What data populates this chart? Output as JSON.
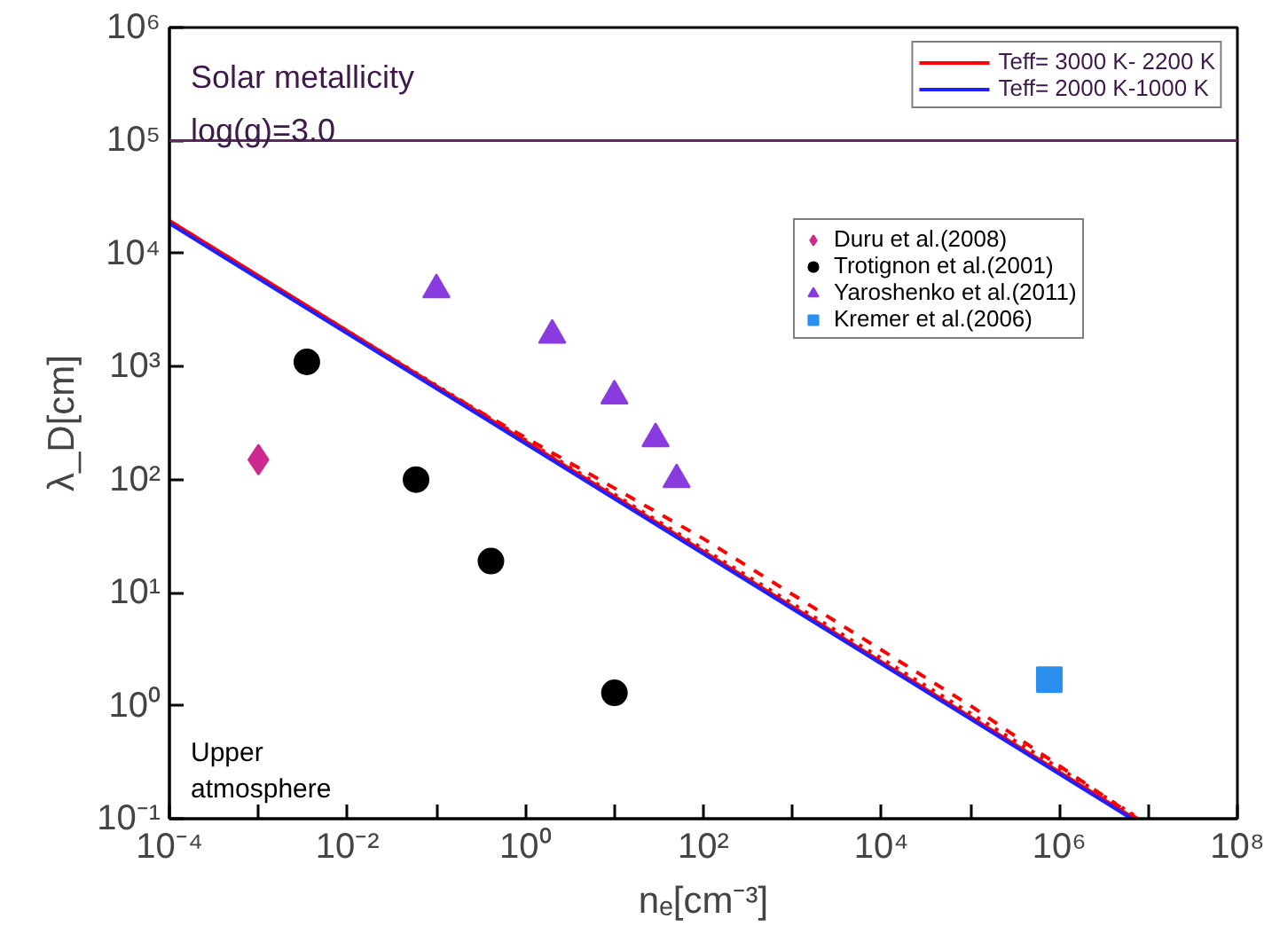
{
  "chart_data": {
    "type": "line",
    "xlabel": "nₑ[cm⁻³]",
    "ylabel": "λ_D[cm]",
    "log": "xy",
    "grid": false,
    "legend": "top right",
    "xlim": [
      0.0001,
      100000000
    ],
    "ylim": [
      0.1,
      1000000
    ],
    "xticks": [
      {
        "value": 0.0001,
        "label": "10⁻⁴"
      },
      {
        "value": 0.001,
        "label": null
      },
      {
        "value": 0.01,
        "label": "10⁻²"
      },
      {
        "value": 0.1,
        "label": null
      },
      {
        "value": 1,
        "label": "10⁰"
      },
      {
        "value": 10,
        "label": null
      },
      {
        "value": 100,
        "label": "10²"
      },
      {
        "value": 1000,
        "label": null
      },
      {
        "value": 10000,
        "label": "10⁴"
      },
      {
        "value": 100000,
        "label": null
      },
      {
        "value": 1000000,
        "label": "10⁶"
      },
      {
        "value": 10000000,
        "label": null
      },
      {
        "value": 100000000,
        "label": "10⁸"
      }
    ],
    "yticks": [
      {
        "value": 0.1,
        "label": "10⁻¹"
      },
      {
        "value": 1,
        "label": "10⁰"
      },
      {
        "value": 10,
        "label": "10¹"
      },
      {
        "value": 100,
        "label": "10²"
      },
      {
        "value": 1000,
        "label": "10³"
      },
      {
        "value": 10000,
        "label": "10⁴"
      },
      {
        "value": 100000,
        "label": "10⁵"
      },
      {
        "value": 1000000,
        "label": "10⁶"
      }
    ],
    "series": [
      {
        "name": "Teff= 3000 K- 2200 K",
        "color": "#ff0000",
        "line_style": "solid",
        "x": [
          0.0001,
          7000000
        ],
        "values": [
          19500,
          0.1
        ]
      },
      {
        "color": "#ff0000",
        "line_style": "dashed",
        "x": [
          0.0001,
          0.1,
          100,
          100000,
          7500000
        ],
        "values": [
          19500,
          660,
          30,
          1.0,
          0.1
        ]
      },
      {
        "color": "#ff0000",
        "line_style": "dotted",
        "x": [
          0.0001,
          1,
          1000,
          1000000,
          8000000
        ],
        "values": [
          19000,
          225,
          8,
          0.28,
          0.1
        ]
      },
      {
        "name": "Teff= 2000 K-1000 K",
        "color": "#2020ff",
        "line_style": "solid",
        "x": [
          0.0001,
          6500000
        ],
        "values": [
          18500,
          0.1
        ]
      },
      {
        "type": "scatter",
        "name": "Duru et al.(2008)",
        "color": "#cc2a8f",
        "marker": "diamond",
        "x": [
          0.001
        ],
        "values": [
          150
        ]
      },
      {
        "type": "scatter",
        "name": "Trotignon et al.(2001)",
        "color": "#000000",
        "marker": "circle",
        "x": [
          0.0035,
          0.059,
          0.41,
          10
        ],
        "values": [
          1100,
          100,
          19,
          1.3
        ]
      },
      {
        "type": "scatter",
        "name": "Yaroshenko et al.(2011)",
        "color": "#8a3be0",
        "marker": "triangle",
        "x": [
          0.1,
          2,
          10,
          29,
          50
        ],
        "values": [
          4800,
          1900,
          550,
          230,
          100
        ]
      },
      {
        "type": "scatter",
        "name": "Kremer et al.(2006)",
        "color": "#2b8fef",
        "marker": "square",
        "x": [
          770000
        ],
        "values": [
          1.7
        ]
      }
    ],
    "ref_lines": [
      {
        "axis": "y",
        "value": 100000,
        "color": "#5a2a5a",
        "line_style": "solid"
      }
    ],
    "annotations": [
      "Solar metallicity",
      "log(g)=3.0",
      "Upper atmosphere"
    ]
  }
}
